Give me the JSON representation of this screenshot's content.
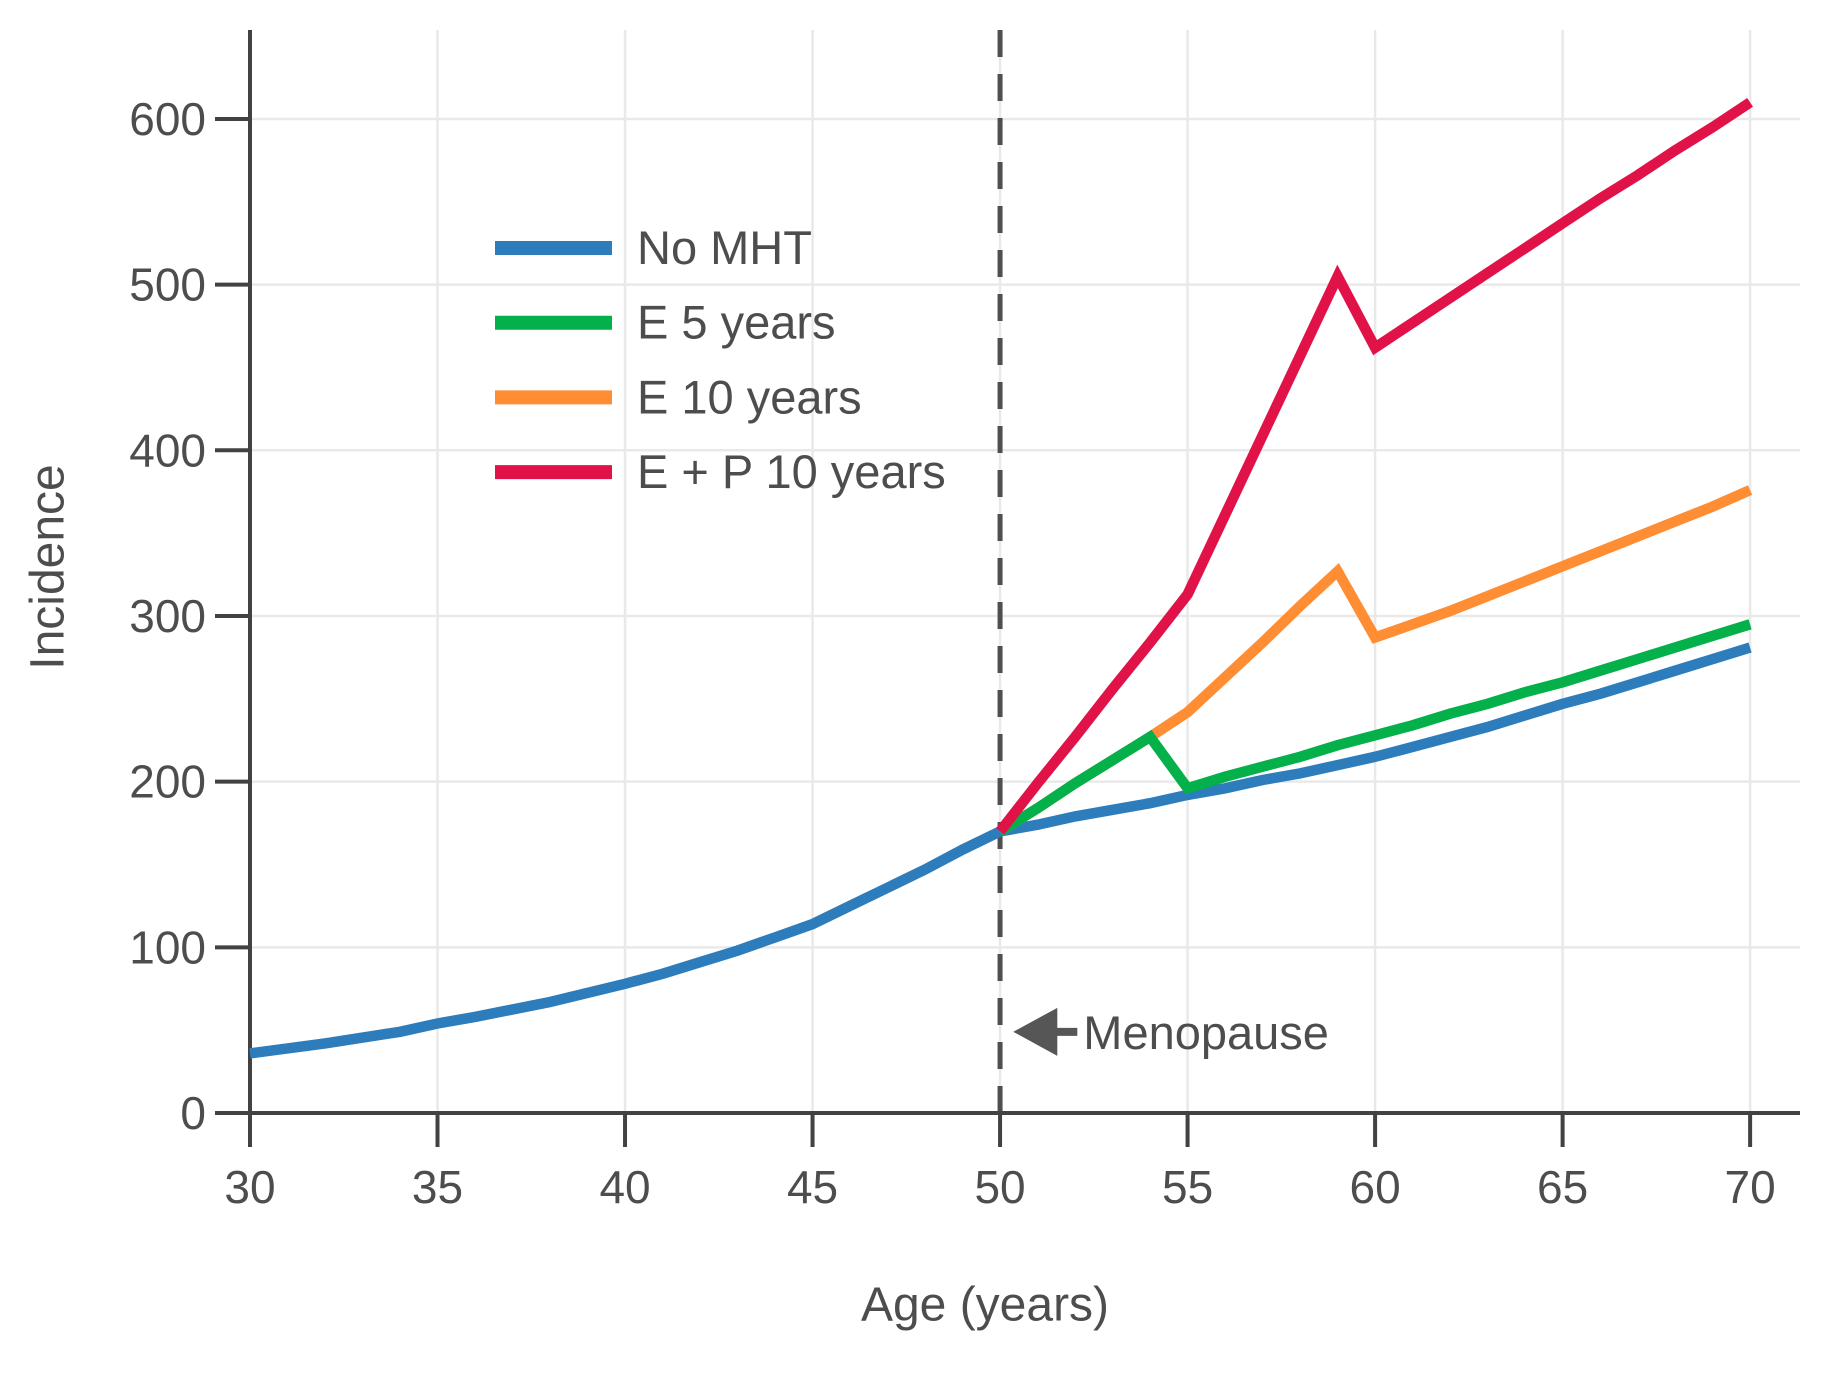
{
  "chart_data": {
    "type": "line",
    "title": "",
    "xlabel": "Age (years)",
    "ylabel": "Incidence",
    "x_ticks": [
      30,
      35,
      40,
      45,
      50,
      55,
      60,
      65,
      70
    ],
    "y_ticks": [
      0,
      100,
      200,
      300,
      400,
      500,
      600
    ],
    "xlim": [
      30,
      71.33
    ],
    "ylim": [
      0,
      653.7
    ],
    "grid": true,
    "legend_position": "upper-left-inside",
    "draw_order": [
      0,
      2,
      1,
      3
    ],
    "series": [
      {
        "name": "No MHT",
        "color": "#2d7dbc",
        "points": [
          [
            30,
            36
          ],
          [
            32,
            42
          ],
          [
            34,
            49
          ],
          [
            35,
            54
          ],
          [
            36,
            58
          ],
          [
            38,
            67
          ],
          [
            40,
            78
          ],
          [
            41,
            84
          ],
          [
            42,
            91
          ],
          [
            43,
            98
          ],
          [
            44,
            106
          ],
          [
            45,
            114
          ],
          [
            46,
            125
          ],
          [
            47,
            136
          ],
          [
            48,
            147
          ],
          [
            49,
            159
          ],
          [
            50,
            170
          ],
          [
            51,
            174
          ],
          [
            52,
            179
          ],
          [
            53,
            183
          ],
          [
            54,
            187
          ],
          [
            55,
            192
          ],
          [
            56,
            196
          ],
          [
            57,
            201
          ],
          [
            58,
            205
          ],
          [
            59,
            210
          ],
          [
            60,
            215
          ],
          [
            61,
            221
          ],
          [
            62,
            227
          ],
          [
            63,
            233
          ],
          [
            64,
            240
          ],
          [
            65,
            247
          ],
          [
            66,
            253
          ],
          [
            67,
            260
          ],
          [
            68,
            267
          ],
          [
            69,
            274
          ],
          [
            70,
            281
          ]
        ]
      },
      {
        "name": "E 5 years",
        "color": "#04b04a",
        "points": [
          [
            50,
            170
          ],
          [
            51,
            184
          ],
          [
            52,
            199
          ],
          [
            53,
            213
          ],
          [
            54,
            227
          ],
          [
            55,
            196
          ],
          [
            56,
            203
          ],
          [
            57,
            209
          ],
          [
            58,
            215
          ],
          [
            59,
            222
          ],
          [
            60,
            228
          ],
          [
            61,
            234
          ],
          [
            62,
            241
          ],
          [
            63,
            247
          ],
          [
            64,
            254
          ],
          [
            65,
            260
          ],
          [
            66,
            267
          ],
          [
            67,
            274
          ],
          [
            68,
            281
          ],
          [
            69,
            288
          ],
          [
            70,
            295
          ]
        ]
      },
      {
        "name": "E 10 years",
        "color": "#ff8d33",
        "points": [
          [
            50,
            170
          ],
          [
            51,
            184
          ],
          [
            52,
            199
          ],
          [
            53,
            213
          ],
          [
            54,
            227
          ],
          [
            55,
            242
          ],
          [
            56,
            263
          ],
          [
            57,
            284
          ],
          [
            58,
            306
          ],
          [
            59,
            327
          ],
          [
            60,
            287
          ],
          [
            61,
            295
          ],
          [
            62,
            303
          ],
          [
            63,
            312
          ],
          [
            64,
            321
          ],
          [
            65,
            330
          ],
          [
            66,
            339
          ],
          [
            67,
            348
          ],
          [
            68,
            357
          ],
          [
            69,
            366
          ],
          [
            70,
            376
          ]
        ]
      },
      {
        "name": "E + P 10 years",
        "color": "#e11248",
        "points": [
          [
            50,
            170
          ],
          [
            51,
            199
          ],
          [
            52,
            227
          ],
          [
            53,
            256
          ],
          [
            54,
            284
          ],
          [
            55,
            313
          ],
          [
            56,
            361
          ],
          [
            57,
            409
          ],
          [
            58,
            457
          ],
          [
            59,
            505
          ],
          [
            60,
            462
          ],
          [
            61,
            477
          ],
          [
            62,
            492
          ],
          [
            63,
            507
          ],
          [
            64,
            522
          ],
          [
            65,
            537
          ],
          [
            66,
            552
          ],
          [
            67,
            566
          ],
          [
            68,
            581
          ],
          [
            69,
            595
          ],
          [
            70,
            610
          ]
        ]
      }
    ],
    "reference_line": {
      "x": 50,
      "style": "dashed",
      "color": "#4f4f4f"
    },
    "annotation": {
      "text": "Menopause",
      "arrow": "left",
      "x": 50.3,
      "y": 49
    }
  },
  "style_colors": {
    "axis": "#424242",
    "tick_label": "#4d4d4d",
    "grid": "#e9e9e9",
    "annotation_text": "#4d4d4d",
    "arrow": "#565656"
  }
}
